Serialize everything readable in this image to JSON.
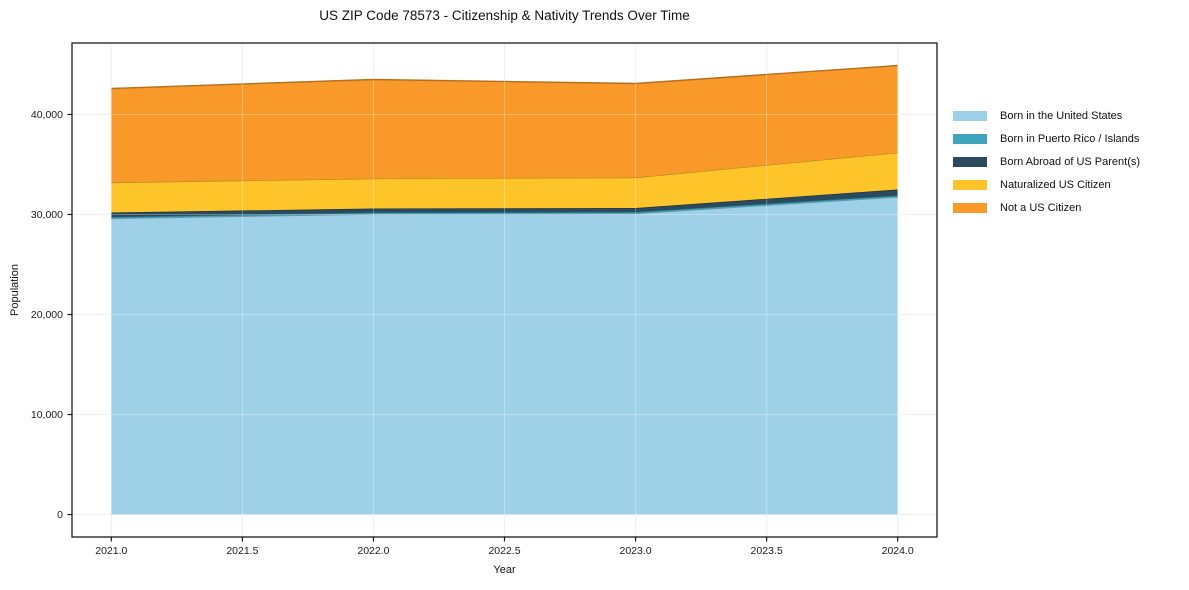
{
  "title": "US ZIP Code 78573 - Citizenship & Nativity Trends Over Time",
  "chart_data": {
    "type": "area",
    "stacked": true,
    "title": "US ZIP Code 78573 - Citizenship & Nativity Trends Over Time",
    "xlabel": "Year",
    "ylabel": "Population",
    "x": [
      2021,
      2022,
      2023,
      2024
    ],
    "series": [
      {
        "name": "Born in the United States",
        "color": "#9ed1e7",
        "values": [
          29600,
          30050,
          30100,
          31750
        ]
      },
      {
        "name": "Born in Puerto Rico / Islands",
        "color": "#3fa5bd",
        "values": [
          150,
          150,
          150,
          150
        ]
      },
      {
        "name": "Born Abroad of US Parent(s)",
        "color": "#2b4a5e",
        "values": [
          450,
          400,
          400,
          600
        ]
      },
      {
        "name": "Naturalized US Citizen",
        "color": "#fdc52a",
        "values": [
          3000,
          3000,
          3050,
          3700
        ]
      },
      {
        "name": "Not a US Citizen",
        "color": "#f8992a",
        "values": [
          9400,
          9900,
          9400,
          8700
        ]
      }
    ],
    "x_ticks": [
      2021.0,
      2021.5,
      2022.0,
      2022.5,
      2023.0,
      2023.5,
      2024.0
    ],
    "x_tick_labels": [
      "2021.0",
      "2021.5",
      "2022.0",
      "2022.5",
      "2023.0",
      "2023.5",
      "2024.0"
    ],
    "y_ticks": [
      0,
      10000,
      20000,
      30000,
      40000
    ],
    "y_tick_labels": [
      "0",
      "10,000",
      "20,000",
      "30,000",
      "40,000"
    ],
    "xlim": [
      2020.85,
      2024.15
    ],
    "ylim": [
      -2245,
      47145
    ],
    "grid": true,
    "legend_position": "right"
  },
  "colors": {
    "grid": "#e9e9e9",
    "grid_overlay": "rgba(255,255,255,0.30)",
    "frame": "#1a1a1a",
    "text": "#1a1a1a",
    "background": "#ffffff"
  }
}
